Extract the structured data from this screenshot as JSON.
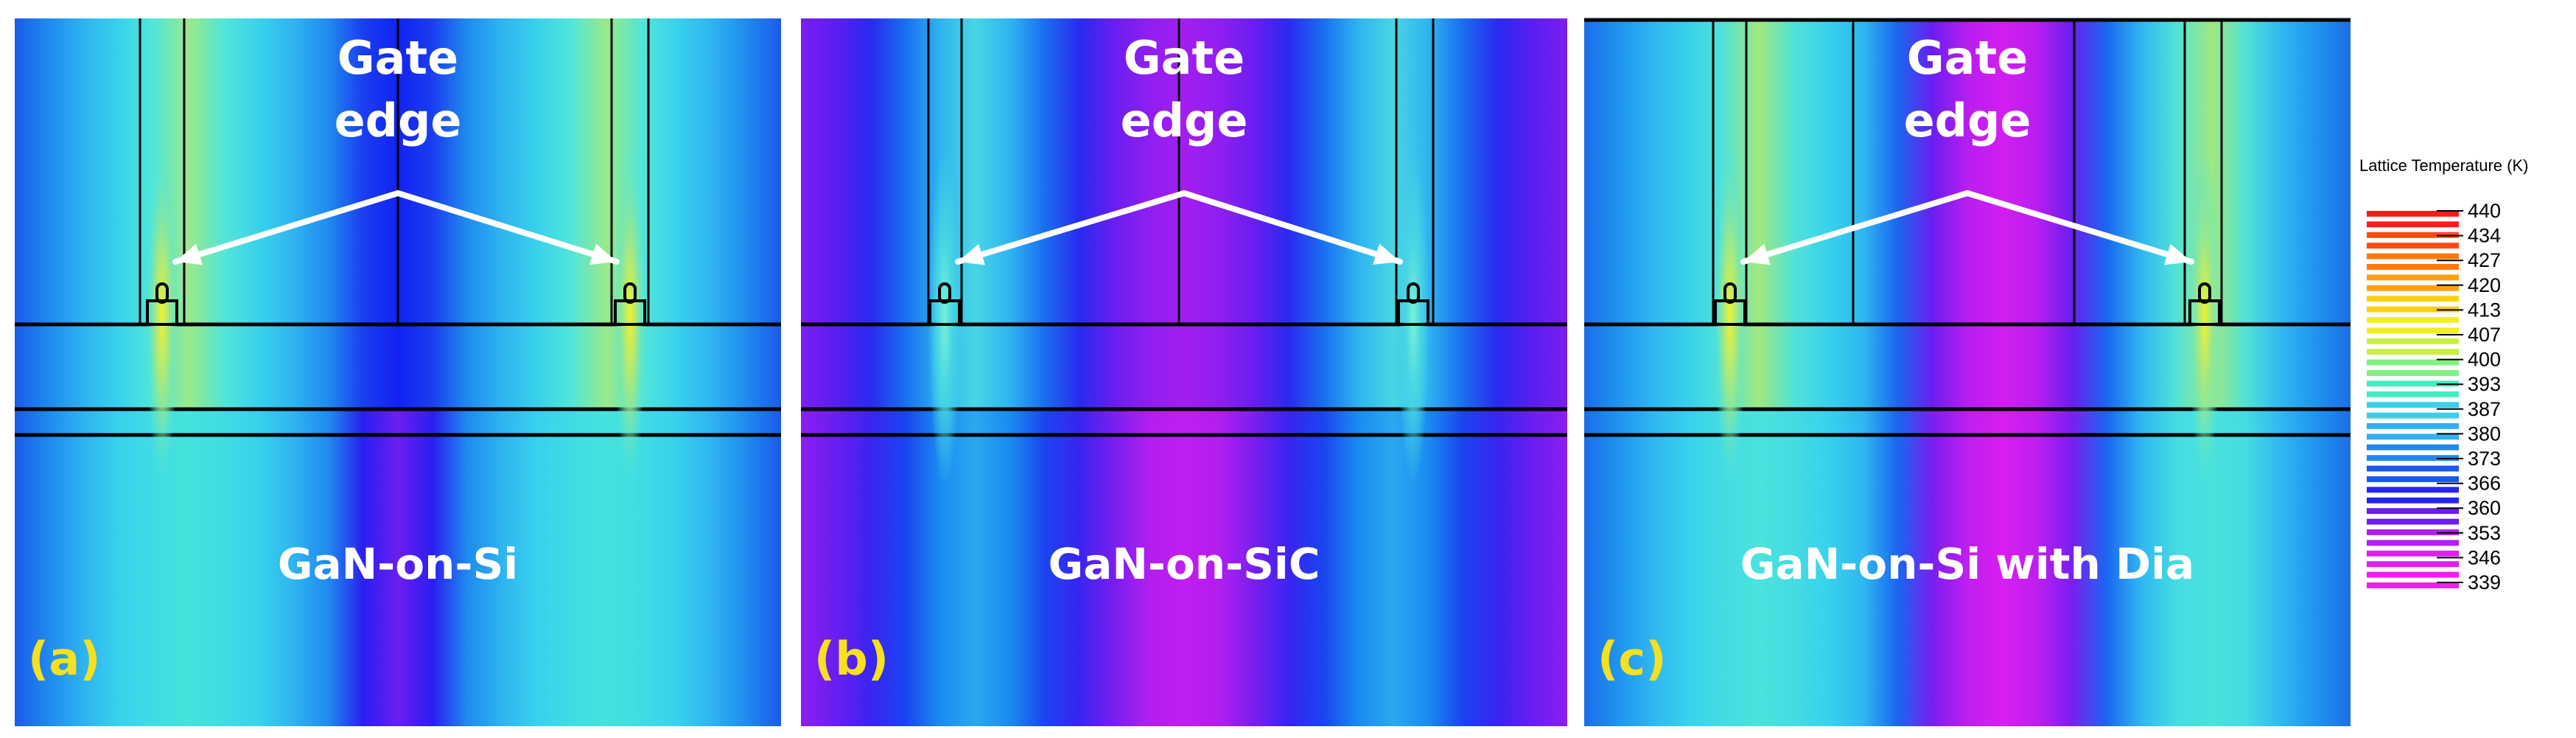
{
  "panels": [
    {
      "tag": "(a)",
      "material": "GaN-on-Si",
      "callout_line1": "Gate",
      "callout_line2": "edge",
      "colors": {
        "top": [
          "#1a5be8",
          "#1f8bef",
          "#2fb4f0",
          "#38d2ec",
          "#52e6d8",
          "#9be88a",
          "#52e6d8",
          "#38d2ec",
          "#2fb4f0",
          "#1f8bef",
          "#1a3ef0",
          "#1222f2",
          "#1a3ef0",
          "#1f8bef",
          "#2fb4f0",
          "#38d2ec",
          "#52e6d8",
          "#9be88a",
          "#52e6d8",
          "#38d2ec",
          "#2fb4f0",
          "#1f8bef",
          "#1a5be8"
        ],
        "bottom": [
          "#1a5be8",
          "#1f8bef",
          "#2fb4f0",
          "#38d2ec",
          "#40dce4",
          "#45e2dc",
          "#40dce4",
          "#38d2ec",
          "#2fb4f0",
          "#1f8bef",
          "#2a1ff0",
          "#6a1ef0",
          "#2a1ff0",
          "#1f8bef",
          "#2fb4f0",
          "#38d2ec",
          "#40dce4",
          "#45e2dc",
          "#40dce4",
          "#38d2ec",
          "#2fb4f0",
          "#1f8bef",
          "#1a5be8"
        ]
      }
    },
    {
      "tag": "(b)",
      "material": "GaN-on-SiC",
      "callout_line1": "Gate",
      "callout_line2": "edge",
      "colors": {
        "top": [
          "#7a1ef0",
          "#5a1ef0",
          "#2a2af0",
          "#1a6ef0",
          "#2fb4f0",
          "#48d6e4",
          "#2fb4f0",
          "#1a6ef0",
          "#2a2af0",
          "#6a1ef0",
          "#901ef0",
          "#a21ef0",
          "#901ef0",
          "#6a1ef0",
          "#2a2af0",
          "#1a6ef0",
          "#2fb4f0",
          "#48d6e4",
          "#2fb4f0",
          "#1a6ef0",
          "#2a2af0",
          "#5a1ef0",
          "#7a1ef0"
        ],
        "bottom": [
          "#8a1ef0",
          "#6a1ef0",
          "#3a24f0",
          "#1a44f0",
          "#1a8cf0",
          "#2aa8f0",
          "#1a8cf0",
          "#1a44f0",
          "#3a24f0",
          "#7a1ef0",
          "#b21ef0",
          "#c01ef0",
          "#b21ef0",
          "#7a1ef0",
          "#3a24f0",
          "#1a44f0",
          "#1a8cf0",
          "#2aa8f0",
          "#1a8cf0",
          "#1a44f0",
          "#3a24f0",
          "#6a1ef0",
          "#8a1ef0"
        ]
      }
    },
    {
      "tag": "(c)",
      "material": "GaN-on-Si with Dia",
      "callout_line1": "Gate",
      "callout_line2": "edge",
      "colors": {
        "top": [
          "#1a6ee8",
          "#1f94ef",
          "#2fb8f0",
          "#38d2ec",
          "#52e2d8",
          "#a0e880",
          "#52e2d8",
          "#38d2ec",
          "#2fb8f0",
          "#1a66f0",
          "#6a1ef0",
          "#b81ef0",
          "#d21ef0",
          "#b81ef0",
          "#6a1ef0",
          "#1a66f0",
          "#2fb8f0",
          "#52e2d8",
          "#a0e880",
          "#52e2d8",
          "#2fb8f0",
          "#1f94ef",
          "#1a6ee8"
        ],
        "bottom": [
          "#1a6ee8",
          "#1f94ef",
          "#2fb8f0",
          "#38d2ec",
          "#44dce2",
          "#4ae2dc",
          "#44dce2",
          "#38d2ec",
          "#2fb8f0",
          "#1a66f0",
          "#7a1ef0",
          "#c01ef0",
          "#d81ef0",
          "#c01ef0",
          "#7a1ef0",
          "#1a66f0",
          "#2fb8f0",
          "#44dce2",
          "#4ae2dc",
          "#44dce2",
          "#2fb8f0",
          "#1f94ef",
          "#1a6ee8"
        ]
      }
    }
  ],
  "legend": {
    "title": "Lattice Temperature (K)",
    "ticks": [
      "440",
      "434",
      "427",
      "420",
      "413",
      "407",
      "400",
      "393",
      "387",
      "380",
      "373",
      "366",
      "360",
      "353",
      "346",
      "339"
    ],
    "colors": [
      "#ff1a1a",
      "#ff4a14",
      "#ff7a10",
      "#ffa010",
      "#ffd010",
      "#f0f020",
      "#c8f040",
      "#80f080",
      "#40ecc0",
      "#38d0ec",
      "#30b0f0",
      "#2088f0",
      "#1858f0",
      "#2424f0",
      "#6a1ef0",
      "#b01ef0",
      "#e01ef0",
      "#f01ef0"
    ]
  },
  "styles": {
    "tag_color": "#f6e021",
    "caption_color": "#ffffff",
    "line_color": "#000000"
  }
}
